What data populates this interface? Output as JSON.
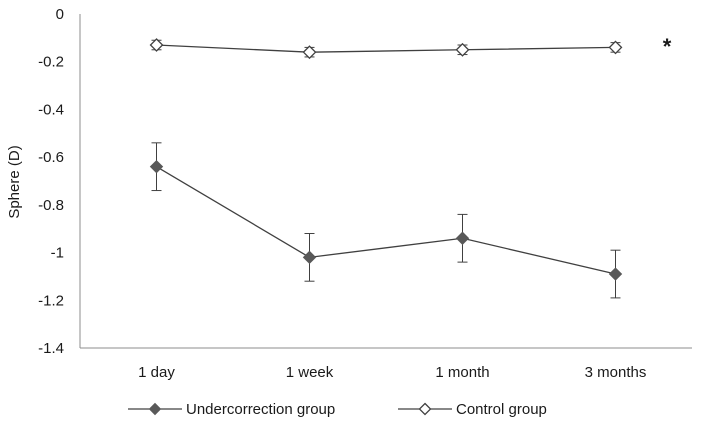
{
  "chart_data": {
    "type": "line",
    "title": "",
    "xlabel": "",
    "ylabel": "Sphere  (D)",
    "categories": [
      "1 day",
      "1 week",
      "1 month",
      "3 months"
    ],
    "ylim": [
      -1.4,
      0
    ],
    "yticks": [
      "0",
      "-0.2",
      "-0.4",
      "-0.6",
      "-0.8",
      "-1",
      "-1.2",
      "-1.4"
    ],
    "ytick_values": [
      0,
      -0.2,
      -0.4,
      -0.6,
      -0.8,
      -1,
      -1.2,
      -1.4
    ],
    "grid": false,
    "legend_position": "bottom",
    "annotation": "*",
    "series": [
      {
        "name": "Undercorrection group",
        "values": [
          -0.64,
          -1.02,
          -0.94,
          -1.09
        ],
        "errors": [
          0.1,
          0.1,
          0.1,
          0.1
        ],
        "marker": "diamond-filled",
        "color": "#595959"
      },
      {
        "name": "Control group",
        "values": [
          -0.13,
          -0.16,
          -0.15,
          -0.14
        ],
        "errors": [
          0.02,
          0.02,
          0.02,
          0.02
        ],
        "marker": "diamond-open",
        "color": "#595959"
      }
    ]
  }
}
